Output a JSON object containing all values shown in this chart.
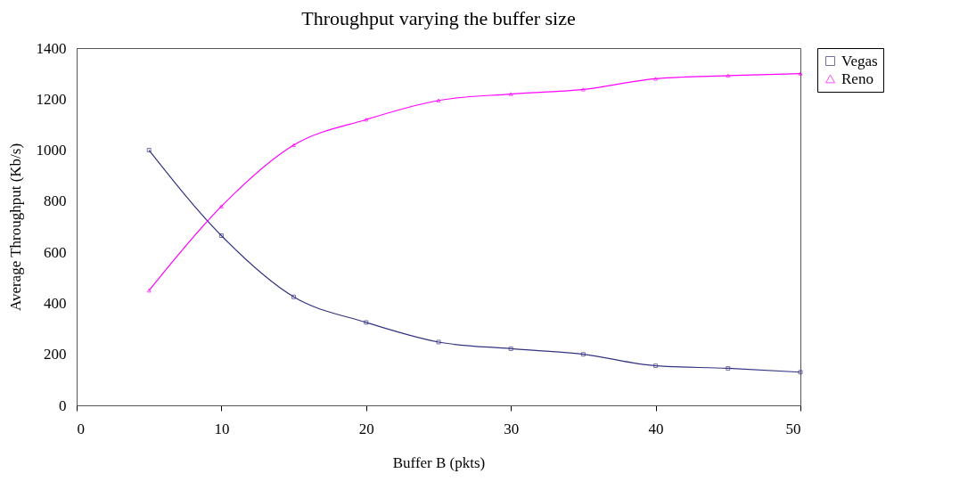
{
  "chart_data": {
    "type": "line",
    "title": "Throughput varying the buffer size",
    "xlabel": "Buffer B (pkts)",
    "ylabel": "Average Throughput (Kb/s)",
    "x": [
      5,
      10,
      15,
      20,
      25,
      30,
      35,
      40,
      45,
      50
    ],
    "series": [
      {
        "name": "Vegas",
        "color": "#333380",
        "marker": "square",
        "values": [
          1000,
          665,
          425,
          325,
          248,
          222,
          200,
          155,
          145,
          130
        ]
      },
      {
        "name": "Reno",
        "color": "#ff00ff",
        "marker": "triangle",
        "values": [
          450,
          780,
          1020,
          1120,
          1195,
          1220,
          1238,
          1280,
          1292,
          1300
        ]
      }
    ],
    "xlim": [
      0,
      50
    ],
    "xticks": [
      0,
      10,
      20,
      30,
      40,
      50
    ],
    "ylim": [
      0,
      1400
    ],
    "yticks": [
      0,
      200,
      400,
      600,
      800,
      1000,
      1200,
      1400
    ],
    "grid": false,
    "legend": "right",
    "line_style": "solid"
  }
}
